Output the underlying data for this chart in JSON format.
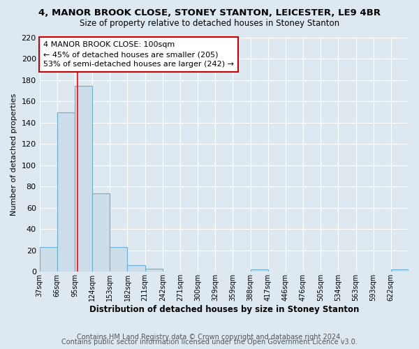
{
  "title_line1": "4, MANOR BROOK CLOSE, STONEY STANTON, LEICESTER, LE9 4BR",
  "title_line2": "Size of property relative to detached houses in Stoney Stanton",
  "xlabel": "Distribution of detached houses by size in Stoney Stanton",
  "ylabel": "Number of detached properties",
  "footer_line1": "Contains HM Land Registry data © Crown copyright and database right 2024.",
  "footer_line2": "Contains public sector information licensed under the Open Government Licence v3.0.",
  "bin_edges": [
    37,
    66,
    95,
    124,
    153,
    182,
    211,
    240,
    269,
    298,
    327,
    356,
    385,
    414,
    443,
    472,
    501,
    530,
    559,
    588,
    617,
    646
  ],
  "tick_labels": [
    "37sqm",
    "66sqm",
    "95sqm",
    "124sqm",
    "153sqm",
    "182sqm",
    "211sqm",
    "242sqm",
    "271sqm",
    "300sqm",
    "329sqm",
    "359sqm",
    "388sqm",
    "417sqm",
    "446sqm",
    "476sqm",
    "505sqm",
    "534sqm",
    "563sqm",
    "593sqm",
    "622sqm"
  ],
  "counts": [
    23,
    150,
    175,
    74,
    23,
    6,
    3,
    0,
    0,
    0,
    0,
    0,
    2,
    0,
    0,
    0,
    0,
    0,
    0,
    0,
    2
  ],
  "bar_color": "#ccdde9",
  "bar_edge_color": "#6aaed6",
  "red_line_x": 100,
  "ylim": [
    0,
    220
  ],
  "yticks": [
    0,
    20,
    40,
    60,
    80,
    100,
    120,
    140,
    160,
    180,
    200,
    220
  ],
  "annotation_title": "4 MANOR BROOK CLOSE: 100sqm",
  "annotation_line1": "← 45% of detached houses are smaller (205)",
  "annotation_line2": "53% of semi-detached houses are larger (242) →",
  "annotation_border_color": "#cc0000",
  "background_color": "#dde8f0",
  "grid_color": "#ffffff",
  "title_fontsize": 9.5,
  "subtitle_fontsize": 8.5,
  "footer_fontsize": 7.0
}
